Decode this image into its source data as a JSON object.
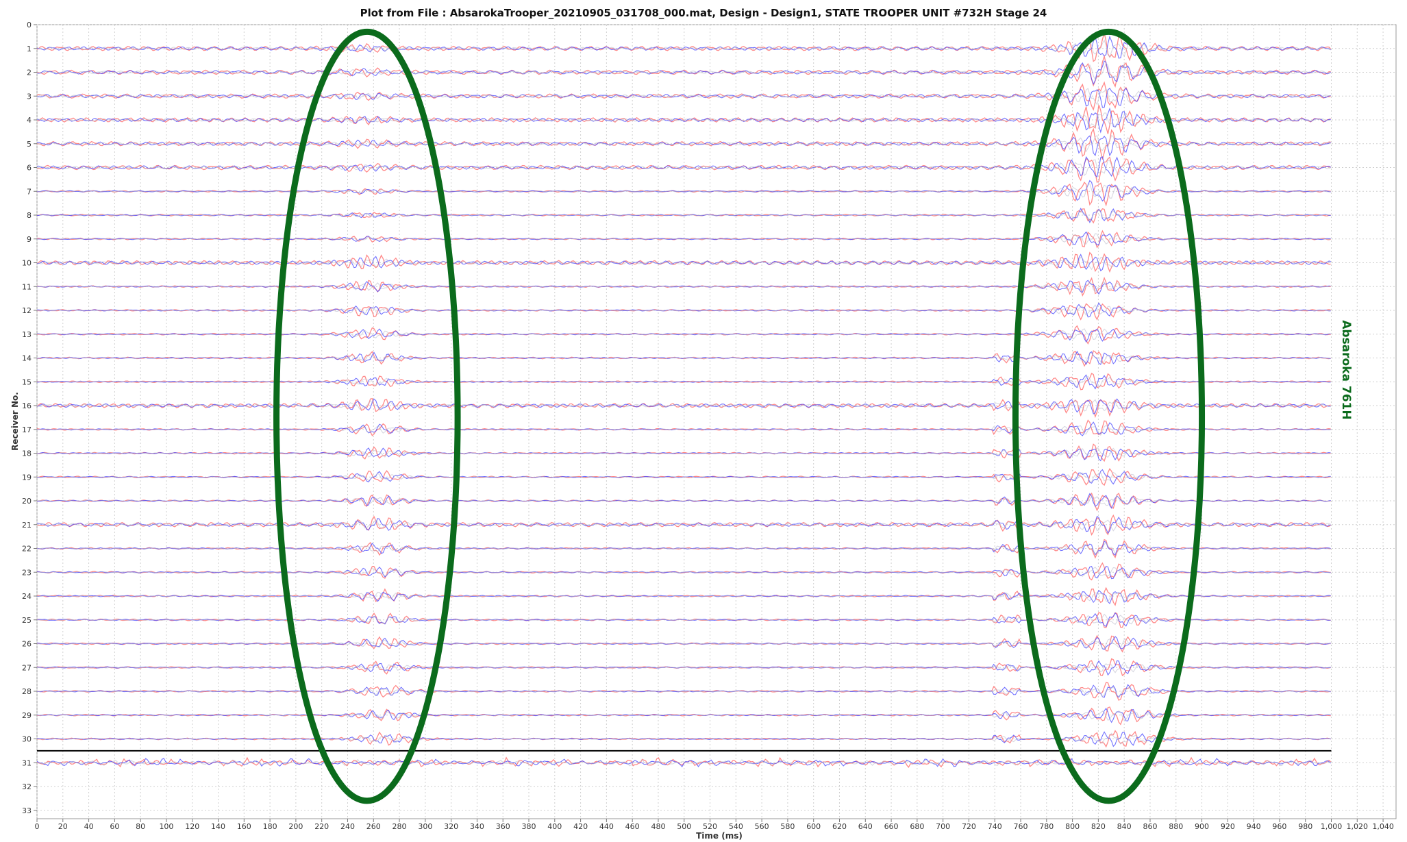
{
  "chart_data": {
    "type": "line",
    "title": "Plot from File : AbsarokaTrooper_20210905_031708_000.mat, Design - Design1, STATE TROOPER UNIT #732H Stage 24",
    "xlabel": "Time (ms)",
    "ylabel": "Receiver No.",
    "xlim": [
      0,
      1050
    ],
    "ylim": [
      33,
      0
    ],
    "x_ticks": [
      "0",
      "20",
      "40",
      "60",
      "80",
      "100",
      "120",
      "140",
      "160",
      "180",
      "200",
      "220",
      "240",
      "260",
      "280",
      "300",
      "320",
      "340",
      "360",
      "380",
      "400",
      "420",
      "440",
      "460",
      "480",
      "500",
      "520",
      "540",
      "560",
      "580",
      "600",
      "620",
      "640",
      "660",
      "680",
      "700",
      "720",
      "740",
      "760",
      "780",
      "800",
      "820",
      "840",
      "860",
      "880",
      "900",
      "920",
      "940",
      "960",
      "980",
      "1,000",
      "1,020",
      "1,040"
    ],
    "y_ticks": [
      "0",
      "1",
      "2",
      "3",
      "4",
      "5",
      "6",
      "7",
      "8",
      "9",
      "10",
      "11",
      "12",
      "13",
      "14",
      "15",
      "16",
      "17",
      "18",
      "19",
      "20",
      "21",
      "22",
      "23",
      "24",
      "25",
      "26",
      "27",
      "28",
      "29",
      "30",
      "31",
      "32",
      "33"
    ],
    "grid": true,
    "trace_time_range": [
      0,
      1000
    ],
    "separator_after_receiver": 30,
    "series": [
      {
        "color": "#ff6b6b"
      },
      {
        "color": "#4d4dff"
      },
      {
        "color": "#b8b8c8"
      }
    ],
    "receivers": [
      1,
      2,
      3,
      4,
      5,
      6,
      7,
      8,
      9,
      10,
      11,
      12,
      13,
      14,
      15,
      16,
      17,
      18,
      19,
      20,
      21,
      22,
      23,
      24,
      25,
      26,
      27,
      28,
      29,
      30,
      31
    ],
    "events": [
      {
        "time_center": 255,
        "time_halfwidth": 70,
        "receiver_range": [
          0.3,
          32.6
        ],
        "color": "#0b6b1c"
      },
      {
        "time_center": 828,
        "time_halfwidth": 72,
        "receiver_range": [
          0.3,
          32.6
        ],
        "color": "#0b6b1c"
      }
    ],
    "annotations": [
      {
        "text": "Absaroka 761H",
        "color": "#0b6b1c",
        "receiver": 14.5
      }
    ]
  }
}
